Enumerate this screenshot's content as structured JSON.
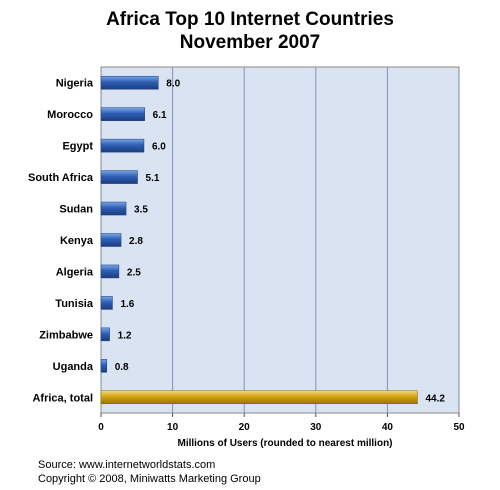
{
  "title_line1": "Africa Top 10 Internet Countries",
  "title_line2": "November 2007",
  "footer": {
    "source": "Source: www.internetworldstats.com",
    "copyright": "Copyright © 2008, Miniwatts Marketing Group"
  },
  "chart_data": {
    "type": "bar",
    "orientation": "horizontal",
    "categories": [
      "Nigeria",
      "Morocco",
      "Egypt",
      "South Africa",
      "Sudan",
      "Kenya",
      "Algeria",
      "Tunisia",
      "Zimbabwe",
      "Uganda",
      "Africa, total"
    ],
    "values": [
      8.0,
      6.1,
      6.0,
      5.1,
      3.5,
      2.8,
      2.5,
      1.6,
      1.2,
      0.8,
      44.2
    ],
    "value_labels": [
      "8.0",
      "6.1",
      "6.0",
      "5.1",
      "3.5",
      "2.8",
      "2.5",
      "1.6",
      "1.2",
      "0.8",
      "44.2"
    ],
    "title": "Africa Top 10 Internet Countries November 2007",
    "xlabel": "Millions of Users (rounded to nearest million)",
    "ylabel": "",
    "xlim": [
      0,
      50
    ],
    "ticks": [
      0,
      10,
      20,
      30,
      40,
      50
    ],
    "grid": true,
    "colors": {
      "bar": "#2f5fb3",
      "total_bar": "#d4a516",
      "plot_bg": "#d9e3f1",
      "grid": "#7f93b8"
    }
  }
}
